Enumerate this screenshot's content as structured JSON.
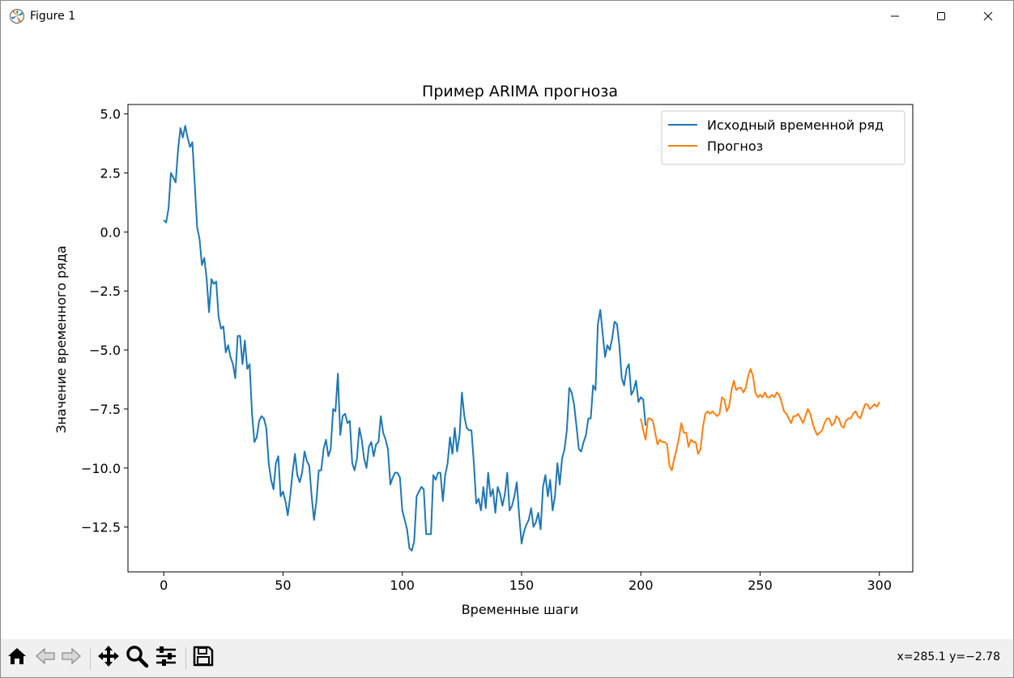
{
  "window": {
    "title": "Figure 1",
    "minimize_icon": "minimize-icon",
    "maximize_icon": "maximize-icon",
    "close_icon": "close-icon"
  },
  "toolbar": {
    "buttons": [
      {
        "name": "home-button",
        "icon": "home-icon"
      },
      {
        "name": "back-button",
        "icon": "arrow-left-icon"
      },
      {
        "name": "forward-button",
        "icon": "arrow-right-icon"
      },
      {
        "name": "pan-button",
        "icon": "move-icon"
      },
      {
        "name": "zoom-button",
        "icon": "magnifier-icon"
      },
      {
        "name": "configure-subplots-button",
        "icon": "sliders-icon"
      },
      {
        "name": "save-button",
        "icon": "floppy-disk-icon"
      }
    ],
    "coords": "x=285.1 y=−2.78"
  },
  "colors": {
    "series1": "#1f77b4",
    "series2": "#ff7f0e"
  },
  "chart_data": {
    "type": "line",
    "title": "Пример ARIMA прогноза",
    "xlabel": "Временные шаги",
    "ylabel": "Значение временного ряда",
    "xlim": [
      -15,
      314
    ],
    "ylim": [
      -14.4,
      5.4
    ],
    "xticks": [
      0,
      50,
      100,
      150,
      200,
      250,
      300
    ],
    "yticks": [
      5.0,
      2.5,
      0.0,
      -2.5,
      -5.0,
      -7.5,
      -10.0,
      -12.5
    ],
    "ytick_labels": [
      "5.0",
      "2.5",
      "0.0",
      "−2.5",
      "−5.0",
      "−7.5",
      "−10.0",
      "−12.5"
    ],
    "legend_position": "top-right",
    "grid": false,
    "series": [
      {
        "name": "Исходный временной ряд",
        "color": "#1f77b4",
        "x_start": 0,
        "values": [
          0.5,
          0.4,
          1.0,
          2.5,
          2.3,
          2.1,
          3.5,
          4.4,
          4.0,
          4.5,
          4.0,
          3.6,
          3.8,
          2.0,
          0.2,
          -0.3,
          -1.4,
          -1.1,
          -2.0,
          -3.4,
          -2.0,
          -2.2,
          -2.1,
          -3.6,
          -4.1,
          -4.0,
          -5.1,
          -4.8,
          -5.3,
          -5.6,
          -6.2,
          -4.4,
          -4.4,
          -5.6,
          -4.6,
          -5.8,
          -5.6,
          -7.7,
          -8.9,
          -8.7,
          -8.0,
          -7.8,
          -7.9,
          -8.3,
          -9.8,
          -10.5,
          -10.9,
          -9.8,
          -9.5,
          -11.2,
          -11.0,
          -11.4,
          -12.0,
          -11.2,
          -10.2,
          -9.4,
          -10.3,
          -10.6,
          -10.2,
          -9.3,
          -9.7,
          -9.9,
          -11.2,
          -12.2,
          -11.4,
          -10.1,
          -10.1,
          -9.2,
          -8.8,
          -9.5,
          -9.2,
          -7.5,
          -7.6,
          -6.0,
          -8.6,
          -7.8,
          -7.7,
          -8.1,
          -8.0,
          -9.8,
          -10.1,
          -9.6,
          -8.3,
          -8.8,
          -9.6,
          -10.0,
          -9.1,
          -8.9,
          -9.5,
          -9.0,
          -8.9,
          -7.8,
          -8.5,
          -8.8,
          -9.2,
          -10.7,
          -10.4,
          -10.2,
          -10.2,
          -10.4,
          -11.8,
          -12.2,
          -12.6,
          -13.4,
          -13.5,
          -13.1,
          -11.2,
          -11.0,
          -10.8,
          -10.9,
          -12.8,
          -12.8,
          -12.8,
          -10.3,
          -10.5,
          -10.2,
          -10.2,
          -11.4,
          -10.3,
          -9.8,
          -8.7,
          -9.4,
          -8.3,
          -9.3,
          -8.6,
          -6.8,
          -7.8,
          -8.3,
          -8.4,
          -8.4,
          -9.8,
          -11.5,
          -11.3,
          -11.8,
          -10.8,
          -11.7,
          -10.2,
          -11.2,
          -10.9,
          -11.9,
          -10.8,
          -11.1,
          -11.6,
          -11.1,
          -10.2,
          -11.8,
          -11.6,
          -11.2,
          -10.6,
          -12.0,
          -13.2,
          -12.7,
          -12.4,
          -12.2,
          -11.7,
          -12.5,
          -12.3,
          -11.9,
          -12.6,
          -10.8,
          -10.3,
          -11.2,
          -10.5,
          -11.8,
          -11.2,
          -9.8,
          -10.7,
          -9.6,
          -9.2,
          -8.4,
          -6.6,
          -6.8,
          -7.3,
          -8.2,
          -9.2,
          -9.3,
          -8.9,
          -8.6,
          -7.9,
          -7.9,
          -6.5,
          -6.7,
          -3.9,
          -3.3,
          -4.3,
          -5.3,
          -4.8,
          -5.0,
          -4.5,
          -3.8,
          -3.9,
          -4.8,
          -6.2,
          -6.5,
          -5.8,
          -5.6,
          -6.9,
          -6.7,
          -6.3,
          -7.2,
          -7.0,
          -7.1,
          -8.2
        ]
      },
      {
        "name": "Прогноз",
        "color": "#ff7f0e",
        "x_start": 200,
        "values": [
          -7.9,
          -8.4,
          -8.8,
          -7.9,
          -7.9,
          -8.0,
          -8.5,
          -9.0,
          -8.8,
          -8.9,
          -8.9,
          -9.0,
          -9.9,
          -10.1,
          -9.6,
          -9.2,
          -8.7,
          -8.1,
          -8.5,
          -8.5,
          -9.1,
          -8.8,
          -8.9,
          -8.9,
          -9.4,
          -9.2,
          -8.3,
          -7.7,
          -7.6,
          -7.7,
          -7.6,
          -7.7,
          -7.8,
          -7.7,
          -7.0,
          -7.1,
          -7.6,
          -7.4,
          -6.7,
          -6.3,
          -6.7,
          -6.6,
          -6.6,
          -6.8,
          -6.6,
          -6.1,
          -5.8,
          -6.1,
          -6.8,
          -7.0,
          -6.9,
          -7.0,
          -6.8,
          -7.0,
          -7.0,
          -6.9,
          -7.0,
          -6.8,
          -6.9,
          -7.2,
          -7.6,
          -7.7,
          -7.9,
          -8.1,
          -7.8,
          -7.8,
          -7.7,
          -7.9,
          -8.1,
          -7.8,
          -7.5,
          -7.7,
          -8.1,
          -8.4,
          -8.6,
          -8.5,
          -8.4,
          -8.1,
          -7.9,
          -7.9,
          -8.2,
          -8.1,
          -7.8,
          -7.9,
          -8.2,
          -8.3,
          -8.0,
          -7.9,
          -7.9,
          -7.7,
          -7.6,
          -7.8,
          -7.9,
          -7.6,
          -7.3,
          -7.3,
          -7.5,
          -7.4,
          -7.3,
          -7.4,
          -7.2
        ]
      }
    ]
  }
}
